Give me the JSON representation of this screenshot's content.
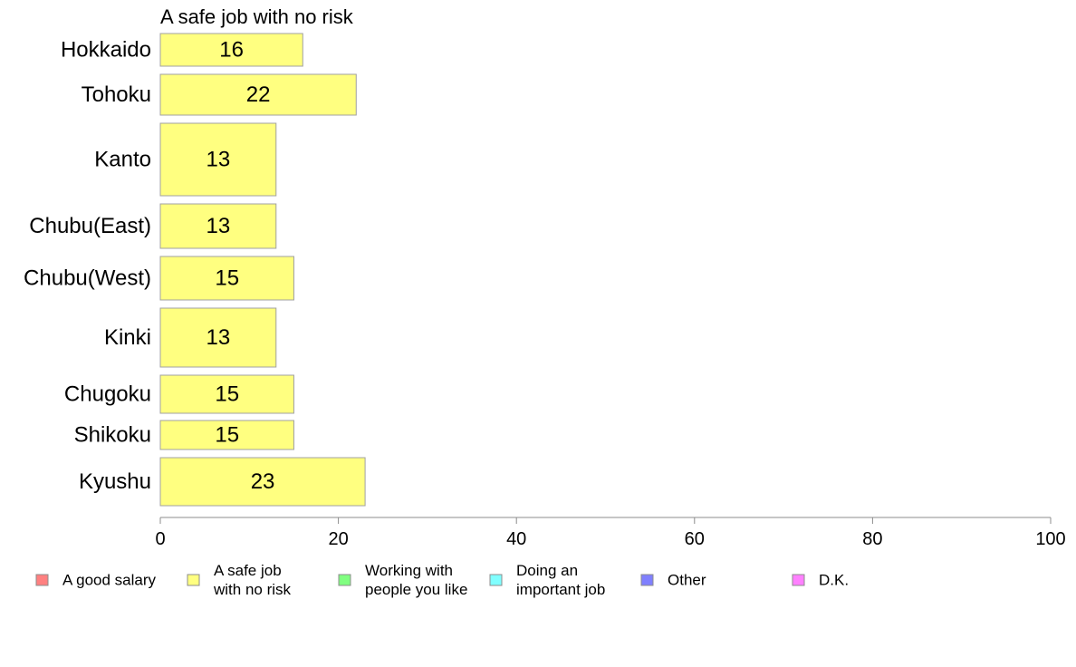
{
  "chart_data": {
    "type": "bar",
    "orientation": "horizontal",
    "panel_title": "A safe job with no risk",
    "categories": [
      "Hokkaido",
      "Tohoku",
      "Kanto",
      "Chubu(East)",
      "Chubu(West)",
      "Kinki",
      "Chugoku",
      "Shikoku",
      "Kyushu"
    ],
    "series": [
      {
        "name": "A safe job with no risk",
        "color": "#ffff80",
        "values": [
          16,
          22,
          13,
          13,
          15,
          13,
          15,
          15,
          23
        ]
      }
    ],
    "xlim": [
      0,
      100
    ],
    "xticks": [
      0,
      20,
      40,
      60,
      80,
      100
    ],
    "grid": false,
    "legend": {
      "position": "bottom",
      "entries": [
        {
          "label": [
            "A good salary"
          ],
          "color": "#ff8080"
        },
        {
          "label": [
            "A safe job",
            "with no risk"
          ],
          "color": "#ffff80"
        },
        {
          "label": [
            "Working with",
            "people you like"
          ],
          "color": "#80ff80"
        },
        {
          "label": [
            "Doing an",
            "important job"
          ],
          "color": "#80ffff"
        },
        {
          "label": [
            "Other"
          ],
          "color": "#8080ff"
        },
        {
          "label": [
            "D.K."
          ],
          "color": "#ff80ff"
        }
      ]
    }
  }
}
